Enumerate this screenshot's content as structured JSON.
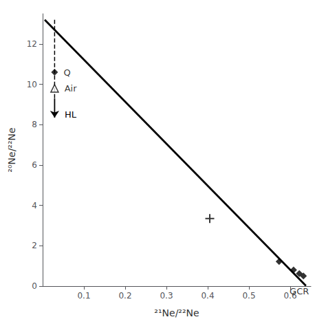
{
  "chart_data": {
    "type": "scatter",
    "xlabel": "²¹Ne/²²Ne",
    "ylabel": "²⁰Ne/²²Ne",
    "xlim": [
      0.0,
      0.65
    ],
    "ylim": [
      0,
      13.5
    ],
    "xticks": [
      0.1,
      0.2,
      0.3,
      0.4,
      0.5,
      0.6
    ],
    "yticks": [
      0,
      2,
      4,
      6,
      8,
      10,
      12
    ],
    "grid": false,
    "series": [
      {
        "type": "line",
        "line_style": "solid",
        "color": "#000000",
        "x": [
          0.005,
          0.638
        ],
        "values": [
          13.2,
          0.02
        ]
      },
      {
        "type": "line",
        "line_style": "dashed",
        "color": "#000000",
        "x": [
          0.029,
          0.029
        ],
        "values": [
          13.2,
          9.3
        ]
      },
      {
        "type": "arrow",
        "name": "HL",
        "color": "#000000",
        "x": [
          0.029,
          0.029
        ],
        "values": [
          9.3,
          8.35
        ]
      },
      {
        "type": "scatter",
        "name": "Q",
        "marker": "diamond",
        "color": "#000000",
        "x": [
          0.029
        ],
        "values": [
          10.6
        ]
      },
      {
        "type": "scatter",
        "name": "Air",
        "marker": "triangle-open",
        "color": "#000000",
        "x": [
          0.029
        ],
        "values": [
          9.8
        ]
      },
      {
        "type": "scatter",
        "marker": "plus",
        "color": "#000000",
        "x": [
          0.405
        ],
        "values": [
          3.35
        ]
      },
      {
        "type": "scatter",
        "marker": "diamond",
        "color": "#000000",
        "x": [
          0.573
        ],
        "values": [
          1.22
        ]
      },
      {
        "type": "scatter",
        "name": "GCR",
        "marker": "diamond",
        "color": "#000000",
        "x": [
          0.608,
          0.622,
          0.632
        ],
        "values": [
          0.8,
          0.62,
          0.5
        ]
      }
    ]
  }
}
